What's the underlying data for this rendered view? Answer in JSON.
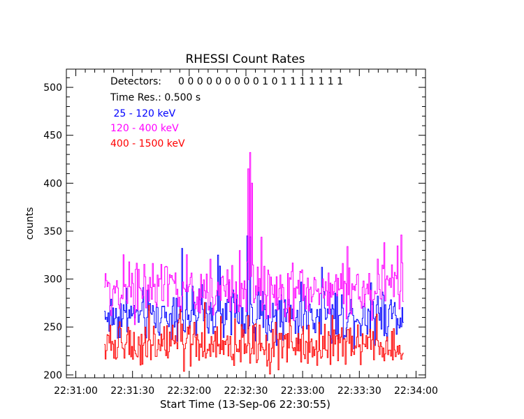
{
  "chart_data": {
    "type": "line",
    "title": "RHESSI Count Rates",
    "xlabel": "Start Time (13-Sep-06 22:30:55)",
    "ylabel": "counts",
    "ylim": [
      197,
      519
    ],
    "xlim_seconds": [
      -5,
      185
    ],
    "x_tick_labels": [
      "22:31:00",
      "22:31:30",
      "22:32:00",
      "22:32:30",
      "22:33:00",
      "22:33:30",
      "22:34:00"
    ],
    "x_tick_values_s": [
      0,
      30,
      60,
      90,
      120,
      150,
      180
    ],
    "y_ticks": [
      200,
      250,
      300,
      350,
      400,
      450,
      500
    ],
    "annotations": {
      "detectors_label": "Detectors:",
      "detectors_values": "0 0 0 0 0 0 0 0 0 1 0 1 1 1 1 1 1 1",
      "time_res": "Time Res.: 0.500 s"
    },
    "series": [
      {
        "name": " 25 - 120 keV",
        "color": "#0000ff",
        "x_start_s": 15,
        "x_end_s": 173,
        "baseline": 262,
        "noise": 20,
        "spikes": [
          {
            "t": 56,
            "v": 332
          },
          {
            "t": 75,
            "v": 325
          },
          {
            "t": 90.5,
            "v": 345
          },
          {
            "t": 92,
            "v": 344
          }
        ]
      },
      {
        "name": "120 - 400 keV",
        "color": "#ff00ff",
        "x_start_s": 15,
        "x_end_s": 173,
        "baseline": 288,
        "noise": 22,
        "spikes": [
          {
            "t": 91,
            "v": 415
          },
          {
            "t": 92,
            "v": 432
          },
          {
            "t": 93,
            "v": 400
          },
          {
            "t": 163,
            "v": 338
          },
          {
            "t": 172,
            "v": 346
          }
        ]
      },
      {
        "name": "400 - 1500 keV",
        "color": "#ff0000",
        "x_start_s": 15,
        "x_end_s": 173,
        "baseline": 230,
        "noise": 17,
        "spikes": [
          {
            "t": 55,
            "v": 268
          },
          {
            "t": 91,
            "v": 262
          },
          {
            "t": 113,
            "v": 270
          }
        ]
      }
    ]
  }
}
